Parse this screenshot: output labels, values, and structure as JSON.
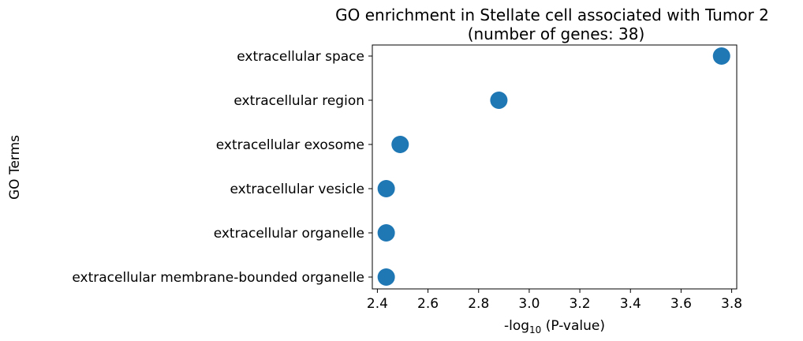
{
  "chart_data": {
    "type": "scatter",
    "title": "GO enrichment in Stellate cell associated with Tumor 2",
    "subtitle": "(number of genes: 38)",
    "xlabel_prefix": "-log",
    "xlabel_subscript": "10",
    "xlabel_suffix": " (P-value)",
    "ylabel": "GO Terms",
    "categories": [
      "extracellular space",
      "extracellular region",
      "extracellular exosome",
      "extracellular vesicle",
      "extracellular organelle",
      "extracellular membrane-bounded organelle"
    ],
    "values": [
      3.76,
      2.88,
      2.49,
      2.435,
      2.435,
      2.435
    ],
    "xlim": [
      2.38,
      3.82
    ],
    "xticks": [
      2.4,
      2.6,
      2.8,
      3.0,
      3.2,
      3.4,
      3.6,
      3.8
    ],
    "xtick_labels": [
      "2.4",
      "2.6",
      "2.8",
      "3.0",
      "3.2",
      "3.4",
      "3.6",
      "3.8"
    ],
    "marker_color": "#1f77b4",
    "grid": false,
    "legend": "none"
  }
}
